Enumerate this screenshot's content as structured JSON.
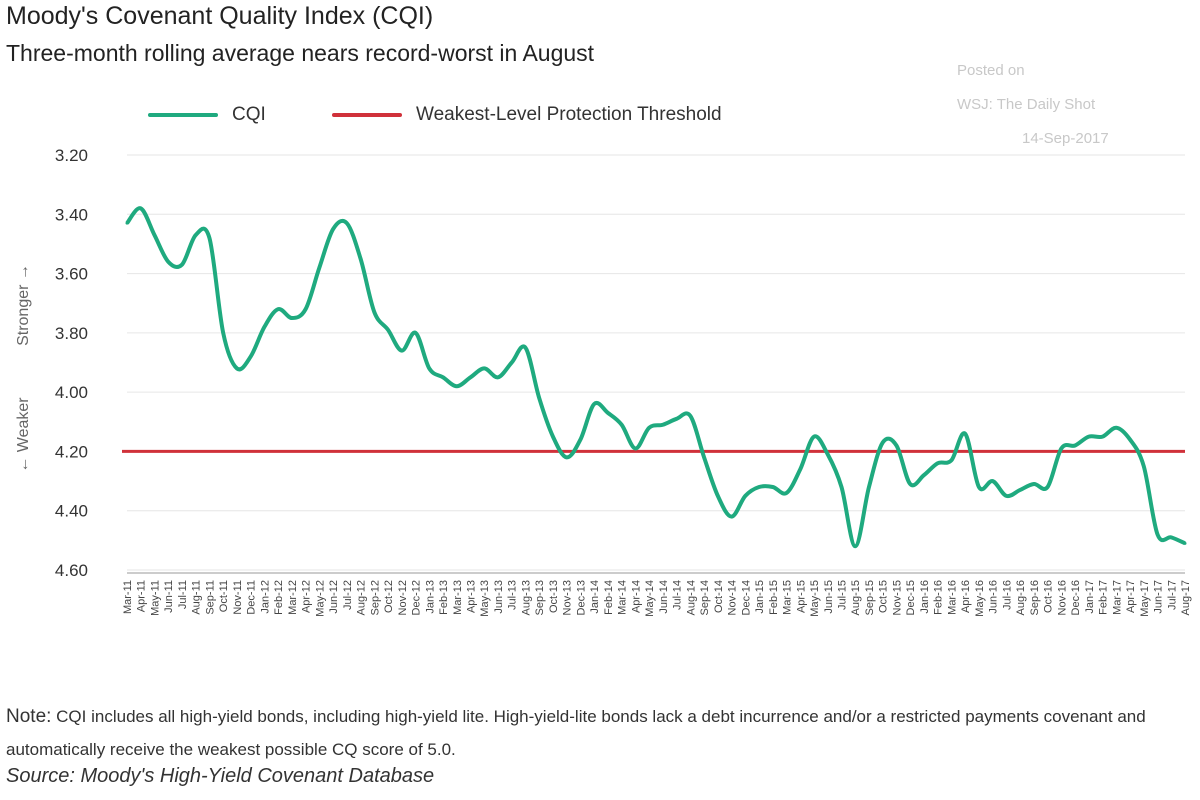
{
  "title": "Moody's Covenant Quality Index (CQI)",
  "subtitle": "Three-month rolling average nears record-worst in August",
  "watermark": [
    "Posted on",
    "WSJ: The Daily Shot",
    "14-Sep-2017"
  ],
  "note_label": "Note:",
  "note_text": "CQI includes all high-yield bonds, including high-yield lite. High-yield-lite bonds lack a debt incurrence and/or a restricted payments covenant and automatically receive the weakest possible CQ score of 5.0.",
  "source": "Source: Moody's High-Yield Covenant Database",
  "colors": {
    "cqi": "#1faa7f",
    "threshold": "#d0313a",
    "grid": "#e6e6e6"
  },
  "chart_data": {
    "type": "line",
    "title": "Moody's Covenant Quality Index (CQI)",
    "ylabel_weaker": "← Weaker",
    "ylabel_stronger": "Stronger →",
    "y_inverted": true,
    "ylim": [
      3.2,
      4.6
    ],
    "yticks": [
      "3.20",
      "3.40",
      "3.60",
      "3.80",
      "4.00",
      "4.20",
      "4.40",
      "4.60"
    ],
    "legend": [
      "CQI",
      "Weakest-Level Protection Threshold"
    ],
    "legend_position": "top-left",
    "grid": true,
    "threshold": 4.2,
    "x": [
      "Mar-11",
      "Apr-11",
      "May-11",
      "Jun-11",
      "Jul-11",
      "Aug-11",
      "Sep-11",
      "Oct-11",
      "Nov-11",
      "Dec-11",
      "Jan-12",
      "Feb-12",
      "Mar-12",
      "Apr-12",
      "May-12",
      "Jun-12",
      "Jul-12",
      "Aug-12",
      "Sep-12",
      "Oct-12",
      "Nov-12",
      "Dec-12",
      "Jan-13",
      "Feb-13",
      "Mar-13",
      "Apr-13",
      "May-13",
      "Jun-13",
      "Jul-13",
      "Aug-13",
      "Sep-13",
      "Oct-13",
      "Nov-13",
      "Dec-13",
      "Jan-14",
      "Feb-14",
      "Mar-14",
      "Apr-14",
      "May-14",
      "Jun-14",
      "Jul-14",
      "Aug-14",
      "Sep-14",
      "Oct-14",
      "Nov-14",
      "Dec-14",
      "Jan-15",
      "Feb-15",
      "Mar-15",
      "Apr-15",
      "May-15",
      "Jun-15",
      "Jul-15",
      "Aug-15",
      "Sep-15",
      "Oct-15",
      "Nov-15",
      "Dec-15",
      "Jan-16",
      "Feb-16",
      "Mar-16",
      "Apr-16",
      "May-16",
      "Jun-16",
      "Jul-16",
      "Aug-16",
      "Sep-16",
      "Oct-16",
      "Nov-16",
      "Dec-16",
      "Jan-17",
      "Feb-17",
      "Mar-17",
      "Apr-17",
      "May-17",
      "Jun-17",
      "Jul-17",
      "Aug-17"
    ],
    "series": [
      {
        "name": "CQI",
        "values": [
          3.43,
          3.38,
          3.47,
          3.56,
          3.57,
          3.47,
          3.48,
          3.8,
          3.92,
          3.88,
          3.78,
          3.72,
          3.75,
          3.72,
          3.58,
          3.45,
          3.43,
          3.55,
          3.73,
          3.79,
          3.86,
          3.8,
          3.92,
          3.95,
          3.98,
          3.95,
          3.92,
          3.95,
          3.9,
          3.85,
          4.02,
          4.15,
          4.22,
          4.16,
          4.04,
          4.07,
          4.11,
          4.19,
          4.12,
          4.11,
          4.09,
          4.08,
          4.22,
          4.35,
          4.42,
          4.35,
          4.32,
          4.32,
          4.34,
          4.26,
          4.15,
          4.21,
          4.32,
          4.52,
          4.32,
          4.17,
          4.18,
          4.31,
          4.28,
          4.24,
          4.23,
          4.14,
          4.32,
          4.3,
          4.35,
          4.33,
          4.31,
          4.32,
          4.19,
          4.18,
          4.15,
          4.15,
          4.12,
          4.16,
          4.25,
          4.48,
          4.49,
          4.51
        ]
      }
    ]
  }
}
